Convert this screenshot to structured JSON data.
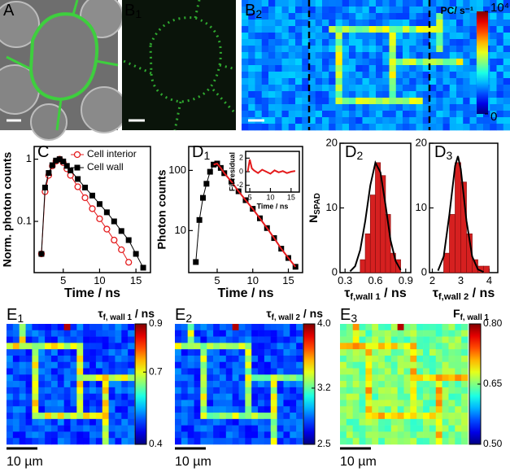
{
  "images": [
    {
      "panel": [
        "A"
      ]
    },
    {
      "panel": [
        "B",
        "1"
      ]
    }
  ],
  "chart_data": [
    {
      "type": "line",
      "panel": [
        "C"
      ],
      "xlabel": "Time / ns",
      "ylabel": "Norm. photon counts",
      "log_y": true,
      "xlim": [
        1,
        17
      ],
      "ylim": [
        0.015,
        1.6
      ],
      "xticks": [
        5,
        10,
        15
      ],
      "yticks": [
        0.1,
        1
      ],
      "legend": "upper right",
      "x": [
        2,
        2.5,
        3,
        3.5,
        4,
        4.5,
        5,
        5.5,
        6,
        7,
        8,
        9,
        10,
        11,
        12,
        13,
        14,
        15,
        16
      ],
      "series": [
        {
          "name": "Cell interior",
          "color": "#e41a1c",
          "marker": "open-circle",
          "values": [
            0.03,
            0.3,
            0.55,
            0.78,
            0.93,
            1.0,
            0.88,
            0.7,
            0.55,
            0.36,
            0.24,
            0.16,
            0.11,
            0.075,
            0.05,
            0.035,
            0.022,
            null,
            null
          ]
        },
        {
          "name": "Cell wall",
          "color": "#000000",
          "marker": "square",
          "values": [
            0.03,
            0.35,
            0.6,
            0.8,
            0.95,
            1.0,
            0.92,
            0.78,
            0.66,
            0.48,
            0.35,
            0.26,
            0.19,
            0.14,
            0.1,
            0.07,
            0.05,
            0.03,
            0.018
          ]
        }
      ]
    },
    {
      "type": "line",
      "panel": [
        "D",
        "1"
      ],
      "xlabel": "Time / ns",
      "ylabel": "Photon counts",
      "log_y": true,
      "xlim": [
        1,
        17
      ],
      "ylim": [
        2,
        250
      ],
      "xticks": [
        5,
        10,
        15
      ],
      "yticks": [
        10,
        100
      ],
      "x": [
        2,
        2.5,
        3,
        3.5,
        4,
        4.5,
        5,
        5.5,
        6,
        7,
        8,
        9,
        10,
        11,
        12,
        13,
        14,
        15,
        16
      ],
      "series": [
        {
          "color": "#000000",
          "marker": "square",
          "values": [
            3,
            15,
            35,
            60,
            95,
            125,
            130,
            110,
            90,
            65,
            45,
            32,
            23,
            16,
            11,
            7.5,
            5,
            3.5,
            2.5
          ]
        },
        {
          "color": "#e41a1c",
          "values": [
            null,
            null,
            null,
            null,
            null,
            125,
            130,
            110,
            90,
            65,
            45,
            32,
            23,
            16,
            11,
            7.5,
            5,
            3.5,
            2.5
          ]
        }
      ]
    },
    {
      "type": "line",
      "xlabel": "Time / ns",
      "ylabel": "Fit residual",
      "xlim": [
        4,
        17
      ],
      "ylim": [
        -3,
        3
      ],
      "xticks": [
        5,
        10,
        15
      ],
      "yticks": [
        -2,
        0,
        2
      ],
      "x": [
        4.5,
        5,
        5.5,
        6,
        7,
        8,
        9,
        10,
        11,
        12,
        13,
        14,
        15,
        16
      ],
      "series": [
        {
          "color": "#e41a1c",
          "values": [
            0,
            1.8,
            0.5,
            0.2,
            -0.2,
            0.3,
            0,
            -0.3,
            0.2,
            -0.1,
            0.1,
            -0.2,
            0,
            0.1
          ]
        }
      ]
    },
    {
      "type": "histogram",
      "panel": [
        "D",
        "2"
      ],
      "xlabel": [
        "τ",
        "f,wall 1",
        " / ns"
      ],
      "ylabel": [
        "N",
        "SPAD"
      ],
      "xlim": [
        0.25,
        0.95
      ],
      "ylim": [
        0,
        20
      ],
      "xticks": [
        0.3,
        0.6,
        0.9
      ],
      "yticks": [
        0,
        10,
        20
      ],
      "color": "#d62020",
      "bins": [
        0.45,
        0.5,
        0.55,
        0.6,
        0.65,
        0.7,
        0.75,
        0.8,
        0.85
      ],
      "counts": [
        2,
        6,
        12,
        17,
        15,
        9,
        3,
        2
      ],
      "fit": {
        "color": "#000000",
        "x": [
          0.35,
          0.4,
          0.45,
          0.5,
          0.55,
          0.6,
          0.65,
          0.7,
          0.75,
          0.8,
          0.85
        ],
        "values": [
          0.2,
          1,
          3.5,
          8,
          13.5,
          17,
          15.5,
          10.5,
          5,
          1.8,
          0.4
        ]
      }
    },
    {
      "type": "histogram",
      "panel": [
        "D",
        "3"
      ],
      "xlabel": [
        "τ",
        "f,wall 2",
        " / ns"
      ],
      "xlim": [
        1.9,
        4.3
      ],
      "ylim": [
        0,
        20
      ],
      "xticks": [
        2,
        3,
        4
      ],
      "yticks": [
        0,
        10,
        20
      ],
      "color": "#d62020",
      "bins": [
        2.4,
        2.6,
        2.8,
        3.0,
        3.2,
        3.4,
        3.6,
        3.8,
        4.0
      ],
      "counts": [
        3,
        9,
        17,
        14,
        6,
        2,
        1,
        1
      ],
      "fit": {
        "color": "#000000",
        "x": [
          2.2,
          2.4,
          2.6,
          2.8,
          2.9,
          3.0,
          3.2,
          3.4,
          3.6,
          3.8
        ],
        "values": [
          0.3,
          2.5,
          9,
          16.5,
          18,
          16,
          8,
          2.5,
          0.5,
          0.1
        ]
      }
    },
    {
      "type": "heatmap",
      "panel": [
        "E",
        "1"
      ],
      "clabel": [
        "τ",
        "f, wall 1",
        " / ns"
      ],
      "clim": [
        0.4,
        0.9
      ],
      "cticks": [
        0.4,
        0.7,
        0.9
      ],
      "scalebar": "10 µm"
    },
    {
      "type": "heatmap",
      "panel": [
        "E",
        "2"
      ],
      "clabel": [
        "τ",
        "f, wall 2",
        " / ns"
      ],
      "clim": [
        2.5,
        4
      ],
      "cticks": [
        2.5,
        3.2,
        {
          "value": 4,
          "label": "4.0"
        }
      ],
      "scalebar": "10 µm"
    },
    {
      "type": "heatmap",
      "panel": [
        "E",
        "3"
      ],
      "clabel": [
        "F",
        "f, wall 1"
      ],
      "clim": [
        0.5,
        0.8
      ],
      "cticks": [
        {
          "value": 0.5,
          "label": "0.50"
        },
        0.65,
        {
          "value": 0.8,
          "label": "0.80"
        }
      ],
      "scalebar": "10 µm"
    },
    {
      "type": "heatmap",
      "panel": [
        "B",
        "2"
      ],
      "clabel": "PC/ s⁻¹",
      "clim": [
        0,
        10000
      ],
      "cticks": [
        0,
        {
          "value": 10000,
          "label": "10⁴"
        }
      ]
    }
  ]
}
